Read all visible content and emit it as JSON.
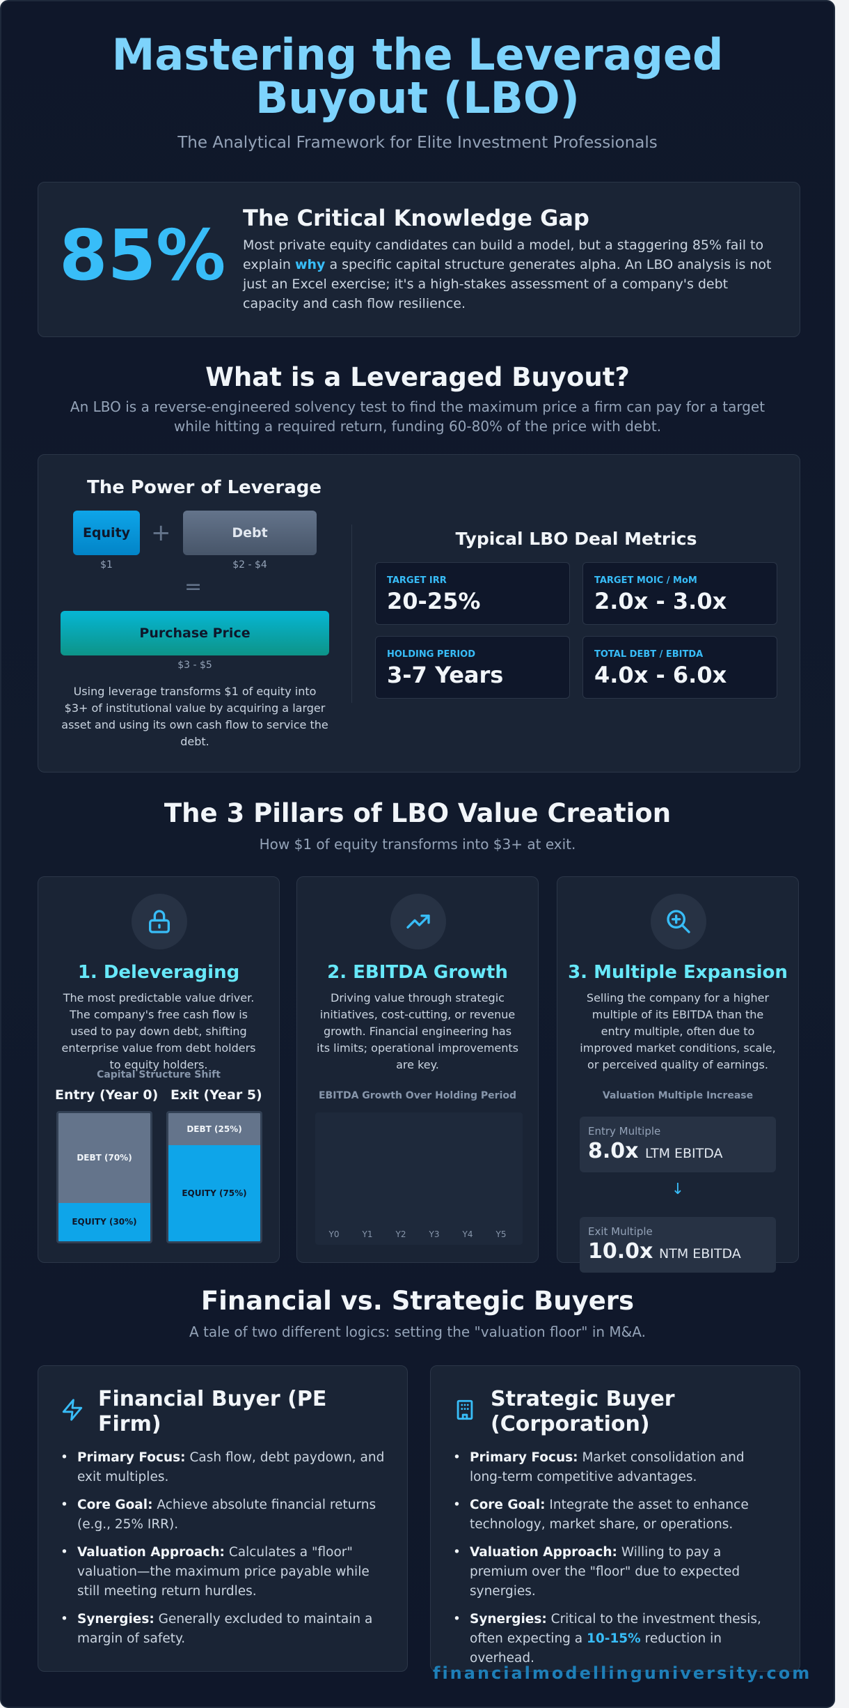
{
  "header": {
    "title_line1": "Mastering the Leveraged",
    "title_line2": "Buyout (LBO)",
    "subtitle": "The Analytical Framework for Elite Investment Professionals"
  },
  "knowledge_gap": {
    "stat": "85%",
    "title": "The Critical Knowledge Gap",
    "text_part1": "Most private equity candidates can build a model, but a staggering 85% fail to explain ",
    "text_highlight": "why",
    "text_part2": " a specific capital structure generates alpha. An LBO analysis is not just an Excel exercise; it's a high-stakes assessment of a company's debt capacity and cash flow resilience."
  },
  "what_is": {
    "title": "What is a Leveraged Buyout?",
    "subtitle": "An LBO is a reverse-engineered solvency test to find the maximum price a firm can pay for a target while hitting a required return, funding 60-80% of the price with debt."
  },
  "power": {
    "title": "The Power of Leverage",
    "equity_label": "Equity",
    "equity_caption": "$1",
    "debt_label": "Debt",
    "debt_caption": "$2 - $4",
    "plus": "+",
    "equals": "=",
    "price_label": "Purchase Price",
    "price_caption": "$3 - $5",
    "text": "Using leverage transforms $1 of equity into $3+ of institutional value by acquiring a larger asset and using its own cash flow to service the debt."
  },
  "metrics": {
    "title": "Typical LBO Deal Metrics",
    "items": [
      {
        "label": "TARGET IRR",
        "value": "20-25%"
      },
      {
        "label": "TARGET MOIC / MoM",
        "value": "2.0x - 3.0x"
      },
      {
        "label": "HOLDING PERIOD",
        "value": "3-7 Years"
      },
      {
        "label": "TOTAL DEBT / EBITDA",
        "value": "4.0x - 6.0x"
      }
    ]
  },
  "pillars_section": {
    "title": "The 3 Pillars of LBO Value Creation",
    "subtitle": "How $1 of equity transforms into $3+ at exit."
  },
  "pillars": [
    {
      "icon": "lock-icon",
      "title": "1. Deleveraging",
      "text": "The most predictable value driver. The company's free cash flow is used to pay down debt, shifting enterprise value from debt holders to equity holders.",
      "chart_label": "Capital Structure Shift",
      "entry_label": "Entry (Year 0)",
      "exit_label": "Exit (Year 5)",
      "entry_debt": "DEBT (70%)",
      "entry_equity": "EQUITY (30%)",
      "exit_debt": "DEBT (25%)",
      "exit_equity": "EQUITY (75%)",
      "entry_debt_pct": 70,
      "exit_debt_pct": 25
    },
    {
      "icon": "trending-up-icon",
      "title": "2. EBITDA Growth",
      "text": "Driving value through strategic initiatives, cost-cutting, or revenue growth. Financial engineering has its limits; operational improvements are key.",
      "chart_label": "EBITDA Growth Over Holding Period",
      "years": [
        "Y0",
        "Y1",
        "Y2",
        "Y3",
        "Y4",
        "Y5"
      ]
    },
    {
      "icon": "search-plus-icon",
      "title": "3. Multiple Expansion",
      "text": "Selling the company for a higher multiple of its EBITDA than the entry multiple, often due to improved market conditions, scale, or perceived quality of earnings.",
      "chart_label": "Valuation Multiple Increase",
      "entry_label": "Entry Multiple",
      "entry_value": "8.0x",
      "entry_unit": "LTM EBITDA",
      "arrow": "↓",
      "exit_label": "Exit Multiple",
      "exit_value": "10.0x",
      "exit_unit": "NTM EBITDA"
    }
  ],
  "buyers_section": {
    "title": "Financial vs. Strategic Buyers",
    "subtitle": "A tale of two different logics: setting the \"valuation floor\" in M&A."
  },
  "financial_buyer": {
    "icon": "lightning-icon",
    "title": "Financial Buyer (PE Firm)",
    "items": [
      {
        "key": "Primary Focus:",
        "text": " Cash flow, debt paydown, and exit multiples."
      },
      {
        "key": "Core Goal:",
        "text": " Achieve absolute financial returns (e.g., 25% IRR)."
      },
      {
        "key": "Valuation Approach:",
        "text": " Calculates a \"floor\" valuation—the maximum price payable while still meeting return hurdles."
      },
      {
        "key": "Synergies:",
        "text": " Generally excluded to maintain a margin of safety."
      }
    ]
  },
  "strategic_buyer": {
    "icon": "building-icon",
    "title": "Strategic Buyer (Corporation)",
    "items": [
      {
        "key": "Primary Focus:",
        "text": " Market consolidation and long-term competitive advantages."
      },
      {
        "key": "Core Goal:",
        "text": " Integrate the asset to enhance technology, market share, or operations."
      },
      {
        "key": "Valuation Approach:",
        "text": " Willing to pay a premium over the \"floor\" due to expected synergies."
      }
    ],
    "synergy_key": "Synergies:",
    "synergy_text1": " Critical to the investment thesis, often expecting a ",
    "synergy_highlight": "10-15%",
    "synergy_text2": " reduction in overhead."
  },
  "footer": {
    "url": "financialmodellinguniversity.com"
  },
  "colors": {
    "accent": "#38bdf8",
    "title": "#7dd3fc",
    "pillar_title": "#67e8f9",
    "background": "#0f172a"
  }
}
